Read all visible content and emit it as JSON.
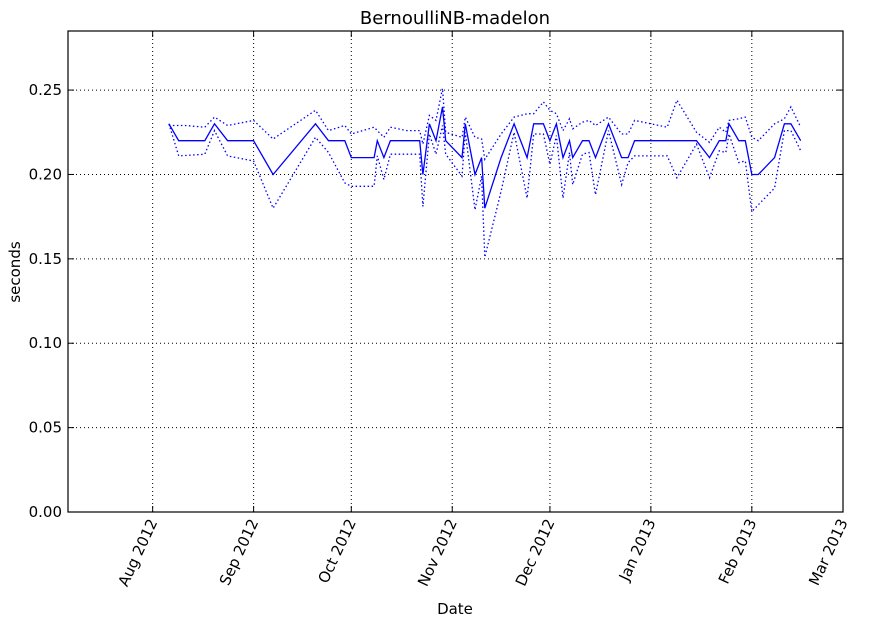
{
  "chart_data": {
    "type": "line",
    "title": "BernoulliNB-madelon",
    "xlabel": "Date",
    "ylabel": "seconds",
    "x_axis": "date",
    "xlim": [
      "2012-07-06",
      "2013-03-01"
    ],
    "ylim": [
      0.0,
      0.285
    ],
    "y_ticks": [
      0.0,
      0.05,
      0.1,
      0.15,
      0.2,
      0.25
    ],
    "y_tick_labels": [
      "0.00",
      "0.05",
      "0.10",
      "0.15",
      "0.20",
      "0.25"
    ],
    "x_ticks": [
      "2012-08-01",
      "2012-09-01",
      "2012-10-01",
      "2012-11-01",
      "2012-12-01",
      "2013-01-01",
      "2013-02-01",
      "2013-03-01"
    ],
    "x_tick_labels": [
      "Aug 2012",
      "Sep 2012",
      "Oct 2012",
      "Nov 2012",
      "Dec 2012",
      "Jan 2013",
      "Feb 2013",
      "Mar 2013"
    ],
    "grid": true,
    "series": [
      {
        "style": "solid",
        "points": [
          [
            "2012-08-06",
            0.23
          ],
          [
            "2012-08-09",
            0.22
          ],
          [
            "2012-08-17",
            0.22
          ],
          [
            "2012-08-20",
            0.23
          ],
          [
            "2012-08-24",
            0.22
          ],
          [
            "2012-09-01",
            0.22
          ],
          [
            "2012-09-07",
            0.2
          ],
          [
            "2012-09-20",
            0.23
          ],
          [
            "2012-09-24",
            0.22
          ],
          [
            "2012-09-29",
            0.22
          ],
          [
            "2012-10-01",
            0.21
          ],
          [
            "2012-10-08",
            0.21
          ],
          [
            "2012-10-09",
            0.22
          ],
          [
            "2012-10-11",
            0.21
          ],
          [
            "2012-10-13",
            0.22
          ],
          [
            "2012-10-18",
            0.22
          ],
          [
            "2012-10-22",
            0.22
          ],
          [
            "2012-10-23",
            0.2
          ],
          [
            "2012-10-25",
            0.23
          ],
          [
            "2012-10-27",
            0.22
          ],
          [
            "2012-10-29",
            0.24
          ],
          [
            "2012-10-30",
            0.22
          ],
          [
            "2012-11-04",
            0.21
          ],
          [
            "2012-11-05",
            0.23
          ],
          [
            "2012-11-08",
            0.2
          ],
          [
            "2012-11-10",
            0.21
          ],
          [
            "2012-11-11",
            0.18
          ],
          [
            "2012-11-16",
            0.21
          ],
          [
            "2012-11-20",
            0.23
          ],
          [
            "2012-11-24",
            0.21
          ],
          [
            "2012-11-26",
            0.23
          ],
          [
            "2012-11-29",
            0.23
          ],
          [
            "2012-12-01",
            0.22
          ],
          [
            "2012-12-03",
            0.23
          ],
          [
            "2012-12-05",
            0.21
          ],
          [
            "2012-12-07",
            0.22
          ],
          [
            "2012-12-08",
            0.21
          ],
          [
            "2012-12-11",
            0.22
          ],
          [
            "2012-12-13",
            0.22
          ],
          [
            "2012-12-15",
            0.21
          ],
          [
            "2012-12-19",
            0.23
          ],
          [
            "2012-12-23",
            0.21
          ],
          [
            "2012-12-25",
            0.21
          ],
          [
            "2012-12-27",
            0.22
          ],
          [
            "2013-01-06",
            0.22
          ],
          [
            "2013-01-09",
            0.22
          ],
          [
            "2013-01-15",
            0.22
          ],
          [
            "2013-01-19",
            0.21
          ],
          [
            "2013-01-22",
            0.22
          ],
          [
            "2013-01-24",
            0.22
          ],
          [
            "2013-01-25",
            0.23
          ],
          [
            "2013-01-28",
            0.22
          ],
          [
            "2013-01-30",
            0.22
          ],
          [
            "2013-02-01",
            0.2
          ],
          [
            "2013-02-03",
            0.2
          ],
          [
            "2013-02-08",
            0.21
          ],
          [
            "2013-02-11",
            0.23
          ],
          [
            "2013-02-13",
            0.23
          ],
          [
            "2013-02-16",
            0.22
          ]
        ]
      },
      {
        "style": "dotted",
        "points": [
          [
            "2012-08-06",
            0.229
          ],
          [
            "2012-08-11",
            0.229
          ],
          [
            "2012-08-17",
            0.228
          ],
          [
            "2012-08-20",
            0.234
          ],
          [
            "2012-08-24",
            0.229
          ],
          [
            "2012-09-01",
            0.232
          ],
          [
            "2012-09-07",
            0.221
          ],
          [
            "2012-09-20",
            0.238
          ],
          [
            "2012-09-24",
            0.226
          ],
          [
            "2012-09-29",
            0.229
          ],
          [
            "2012-10-01",
            0.224
          ],
          [
            "2012-10-08",
            0.228
          ],
          [
            "2012-10-09",
            0.226
          ],
          [
            "2012-10-11",
            0.222
          ],
          [
            "2012-10-13",
            0.228
          ],
          [
            "2012-10-18",
            0.226
          ],
          [
            "2012-10-22",
            0.226
          ],
          [
            "2012-10-23",
            0.218
          ],
          [
            "2012-10-25",
            0.235
          ],
          [
            "2012-10-27",
            0.232
          ],
          [
            "2012-10-29",
            0.251
          ],
          [
            "2012-10-30",
            0.225
          ],
          [
            "2012-11-04",
            0.222
          ],
          [
            "2012-11-05",
            0.234
          ],
          [
            "2012-11-08",
            0.222
          ],
          [
            "2012-11-10",
            0.221
          ],
          [
            "2012-11-11",
            0.209
          ],
          [
            "2012-11-16",
            0.224
          ],
          [
            "2012-11-20",
            0.234
          ],
          [
            "2012-11-24",
            0.236
          ],
          [
            "2012-11-26",
            0.236
          ],
          [
            "2012-11-29",
            0.243
          ],
          [
            "2012-12-01",
            0.238
          ],
          [
            "2012-12-03",
            0.236
          ],
          [
            "2012-12-05",
            0.226
          ],
          [
            "2012-12-07",
            0.233
          ],
          [
            "2012-12-08",
            0.227
          ],
          [
            "2012-12-11",
            0.231
          ],
          [
            "2012-12-13",
            0.232
          ],
          [
            "2012-12-15",
            0.229
          ],
          [
            "2012-12-19",
            0.234
          ],
          [
            "2012-12-23",
            0.224
          ],
          [
            "2012-12-25",
            0.224
          ],
          [
            "2012-12-27",
            0.232
          ],
          [
            "2013-01-06",
            0.228
          ],
          [
            "2013-01-09",
            0.244
          ],
          [
            "2013-01-15",
            0.225
          ],
          [
            "2013-01-19",
            0.219
          ],
          [
            "2013-01-22",
            0.228
          ],
          [
            "2013-01-24",
            0.225
          ],
          [
            "2013-01-25",
            0.232
          ],
          [
            "2013-01-28",
            0.233
          ],
          [
            "2013-01-30",
            0.234
          ],
          [
            "2013-02-01",
            0.222
          ],
          [
            "2013-02-03",
            0.22
          ],
          [
            "2013-02-08",
            0.23
          ],
          [
            "2013-02-11",
            0.233
          ],
          [
            "2013-02-13",
            0.24
          ],
          [
            "2013-02-16",
            0.228
          ]
        ]
      },
      {
        "style": "dotted",
        "points": [
          [
            "2012-08-06",
            0.23
          ],
          [
            "2012-08-09",
            0.211
          ],
          [
            "2012-08-17",
            0.212
          ],
          [
            "2012-08-20",
            0.226
          ],
          [
            "2012-08-24",
            0.211
          ],
          [
            "2012-09-01",
            0.208
          ],
          [
            "2012-09-07",
            0.18
          ],
          [
            "2012-09-20",
            0.222
          ],
          [
            "2012-09-24",
            0.213
          ],
          [
            "2012-09-29",
            0.195
          ],
          [
            "2012-10-01",
            0.193
          ],
          [
            "2012-10-08",
            0.193
          ],
          [
            "2012-10-09",
            0.211
          ],
          [
            "2012-10-11",
            0.197
          ],
          [
            "2012-10-13",
            0.212
          ],
          [
            "2012-10-18",
            0.212
          ],
          [
            "2012-10-22",
            0.212
          ],
          [
            "2012-10-23",
            0.181
          ],
          [
            "2012-10-25",
            0.224
          ],
          [
            "2012-10-27",
            0.212
          ],
          [
            "2012-10-29",
            0.229
          ],
          [
            "2012-10-30",
            0.212
          ],
          [
            "2012-11-04",
            0.199
          ],
          [
            "2012-11-05",
            0.225
          ],
          [
            "2012-11-08",
            0.179
          ],
          [
            "2012-11-10",
            0.199
          ],
          [
            "2012-11-11",
            0.151
          ],
          [
            "2012-11-16",
            0.19
          ],
          [
            "2012-11-20",
            0.225
          ],
          [
            "2012-11-24",
            0.186
          ],
          [
            "2012-11-26",
            0.224
          ],
          [
            "2012-11-29",
            0.224
          ],
          [
            "2012-12-01",
            0.206
          ],
          [
            "2012-12-03",
            0.223
          ],
          [
            "2012-12-05",
            0.186
          ],
          [
            "2012-12-07",
            0.213
          ],
          [
            "2012-12-08",
            0.194
          ],
          [
            "2012-12-11",
            0.212
          ],
          [
            "2012-12-13",
            0.213
          ],
          [
            "2012-12-15",
            0.188
          ],
          [
            "2012-12-19",
            0.226
          ],
          [
            "2012-12-23",
            0.194
          ],
          [
            "2012-12-25",
            0.207
          ],
          [
            "2012-12-27",
            0.211
          ],
          [
            "2013-01-06",
            0.211
          ],
          [
            "2013-01-09",
            0.198
          ],
          [
            "2013-01-15",
            0.218
          ],
          [
            "2013-01-19",
            0.198
          ],
          [
            "2013-01-22",
            0.214
          ],
          [
            "2013-01-24",
            0.213
          ],
          [
            "2013-01-25",
            0.224
          ],
          [
            "2013-01-28",
            0.207
          ],
          [
            "2013-01-30",
            0.208
          ],
          [
            "2013-02-01",
            0.178
          ],
          [
            "2013-02-03",
            0.182
          ],
          [
            "2013-02-08",
            0.192
          ],
          [
            "2013-02-11",
            0.226
          ],
          [
            "2013-02-13",
            0.226
          ],
          [
            "2013-02-16",
            0.214
          ]
        ]
      }
    ]
  }
}
